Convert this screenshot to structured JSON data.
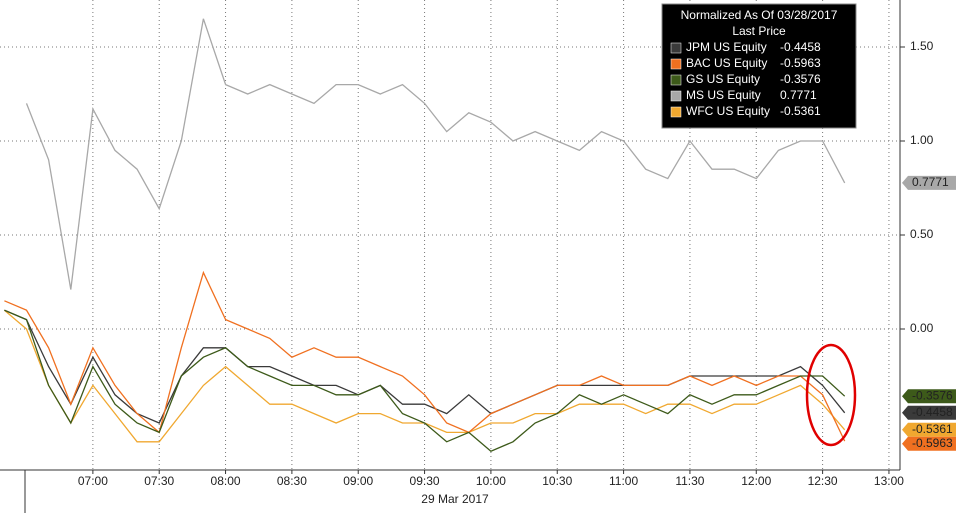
{
  "chart_data": {
    "type": "line",
    "legend_title": "Normalized As Of 03/28/2017",
    "legend_subtitle": "Last Price",
    "x_label": "29 Mar 2017",
    "x": [
      "06:20",
      "06:30",
      "06:40",
      "06:50",
      "07:00",
      "07:10",
      "07:20",
      "07:30",
      "07:40",
      "07:50",
      "08:00",
      "08:10",
      "08:20",
      "08:30",
      "08:40",
      "08:50",
      "09:00",
      "09:10",
      "09:20",
      "09:30",
      "09:40",
      "09:50",
      "10:00",
      "10:10",
      "10:20",
      "10:30",
      "10:40",
      "10:50",
      "11:00",
      "11:10",
      "11:20",
      "11:30",
      "11:40",
      "11:50",
      "12:00",
      "12:10",
      "12:20",
      "12:30",
      "12:40"
    ],
    "xlim": [
      "06:18",
      "13:05"
    ],
    "xticks": [
      "07:00",
      "07:30",
      "08:00",
      "08:30",
      "09:00",
      "09:30",
      "10:00",
      "10:30",
      "11:00",
      "11:30",
      "12:00",
      "12:30",
      "13:00"
    ],
    "ylim": [
      -0.75,
      1.75
    ],
    "yticks": [
      {
        "value": 0,
        "label": "0.00"
      },
      {
        "value": 0.5,
        "label": "0.50"
      },
      {
        "value": 1,
        "label": "1.00"
      },
      {
        "value": 1.5,
        "label": "1.50"
      }
    ],
    "grid": true,
    "legend": "upper right",
    "series": [
      {
        "name": "JPM US Equity",
        "color": "#3a3a3a",
        "values": [
          0.1,
          0.05,
          -0.2,
          -0.4,
          -0.15,
          -0.35,
          -0.45,
          -0.5,
          -0.25,
          -0.1,
          -0.1,
          -0.2,
          -0.2,
          -0.25,
          -0.3,
          -0.3,
          -0.35,
          -0.3,
          -0.4,
          -0.4,
          -0.45,
          -0.35,
          -0.45,
          -0.4,
          -0.35,
          -0.3,
          -0.3,
          -0.3,
          -0.3,
          -0.3,
          -0.3,
          -0.25,
          -0.25,
          -0.25,
          -0.25,
          -0.25,
          -0.2,
          -0.3,
          -0.4458
        ]
      },
      {
        "name": "BAC US Equity",
        "color": "#f07020",
        "values": [
          0.15,
          0.1,
          -0.1,
          -0.4,
          -0.1,
          -0.3,
          -0.45,
          -0.55,
          -0.1,
          0.3,
          0.05,
          0,
          -0.05,
          -0.15,
          -0.1,
          -0.15,
          -0.15,
          -0.2,
          -0.25,
          -0.35,
          -0.5,
          -0.55,
          -0.45,
          -0.4,
          -0.35,
          -0.3,
          -0.3,
          -0.25,
          -0.3,
          -0.3,
          -0.3,
          -0.25,
          -0.3,
          -0.25,
          -0.3,
          -0.25,
          -0.25,
          -0.35,
          -0.5963
        ]
      },
      {
        "name": "GS US Equity",
        "color": "#3d5a1a",
        "values": [
          0.1,
          0.05,
          -0.3,
          -0.5,
          -0.2,
          -0.4,
          -0.5,
          -0.55,
          -0.25,
          -0.15,
          -0.1,
          -0.2,
          -0.25,
          -0.3,
          -0.3,
          -0.35,
          -0.35,
          -0.3,
          -0.45,
          -0.5,
          -0.6,
          -0.55,
          -0.65,
          -0.6,
          -0.5,
          -0.45,
          -0.35,
          -0.4,
          -0.35,
          -0.4,
          -0.45,
          -0.35,
          -0.4,
          -0.35,
          -0.35,
          -0.3,
          -0.25,
          -0.25,
          -0.3576
        ]
      },
      {
        "name": "MS US Equity",
        "color": "#a8a8a8",
        "values": [
          null,
          1.2,
          0.9,
          0.21,
          1.17,
          0.95,
          0.85,
          0.64,
          1.0,
          1.65,
          1.3,
          1.25,
          1.3,
          1.25,
          1.2,
          1.3,
          1.3,
          1.25,
          1.3,
          1.2,
          1.05,
          1.15,
          1.1,
          1.0,
          1.05,
          1.0,
          0.95,
          1.05,
          1.0,
          0.85,
          0.8,
          1.0,
          0.85,
          0.85,
          0.8,
          0.95,
          1.0,
          1.0,
          0.7771
        ]
      },
      {
        "name": "WFC US Equity",
        "color": "#f0a830",
        "values": [
          0.1,
          0,
          -0.3,
          -0.5,
          -0.3,
          -0.45,
          -0.6,
          -0.6,
          -0.45,
          -0.3,
          -0.2,
          -0.3,
          -0.4,
          -0.4,
          -0.45,
          -0.5,
          -0.45,
          -0.45,
          -0.5,
          -0.5,
          -0.55,
          -0.55,
          -0.5,
          -0.5,
          -0.45,
          -0.45,
          -0.4,
          -0.4,
          -0.4,
          -0.45,
          -0.4,
          -0.4,
          -0.45,
          -0.4,
          -0.4,
          -0.35,
          -0.3,
          -0.4,
          -0.5361
        ]
      }
    ]
  }
}
